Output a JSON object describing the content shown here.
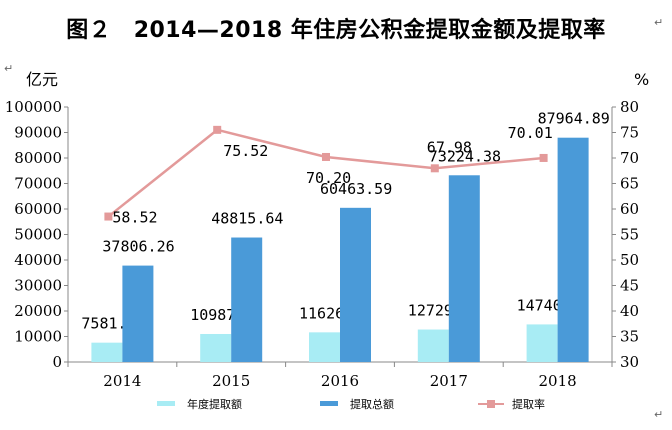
{
  "figure": {
    "title": "图２　2014—2018 年住房公积金提取金额及提取率",
    "return_mark": "↵"
  },
  "chart_data": {
    "type": "bar",
    "title": "2014—2018 年住房公积金提取金额及提取率",
    "categories": [
      "2014",
      "2015",
      "2016",
      "2017",
      "2018"
    ],
    "y_left": {
      "unit": "亿元",
      "min": 0,
      "max": 100000,
      "step": 10000,
      "ticks": [
        "0",
        "10000",
        "20000",
        "30000",
        "40000",
        "50000",
        "60000",
        "70000",
        "80000",
        "90000",
        "100000"
      ]
    },
    "y_right": {
      "unit": "%",
      "min": 30,
      "max": 80,
      "step": 5,
      "ticks": [
        "30",
        "35",
        "40",
        "45",
        "50",
        "55",
        "60",
        "65",
        "70",
        "75",
        "80"
      ]
    },
    "series": [
      {
        "name": "年度提取额",
        "type": "bar",
        "axis": "left",
        "color": "#a8ecf4",
        "values": [
          7581.96,
          10987.47,
          11626.88,
          12729.8,
          14740.51
        ],
        "labels": [
          "7581.96",
          "10987.47",
          "11626.88",
          "12729.8",
          "14740.51"
        ]
      },
      {
        "name": "提取总额",
        "type": "bar",
        "axis": "left",
        "color": "#4a9ad8",
        "values": [
          37806.26,
          48815.64,
          60463.59,
          73224.38,
          87964.89
        ],
        "labels": [
          "37806.26",
          "48815.64",
          "60463.59",
          "73224.38",
          "87964.89"
        ]
      },
      {
        "name": "提取率",
        "type": "line",
        "axis": "right",
        "color": "#e39a9a",
        "values": [
          58.52,
          75.52,
          70.2,
          67.98,
          70.01
        ],
        "labels": [
          "58.52",
          "75.52",
          "70.20",
          "67.98",
          "70.01"
        ]
      }
    ],
    "grid": false,
    "legend_position": "bottom"
  }
}
